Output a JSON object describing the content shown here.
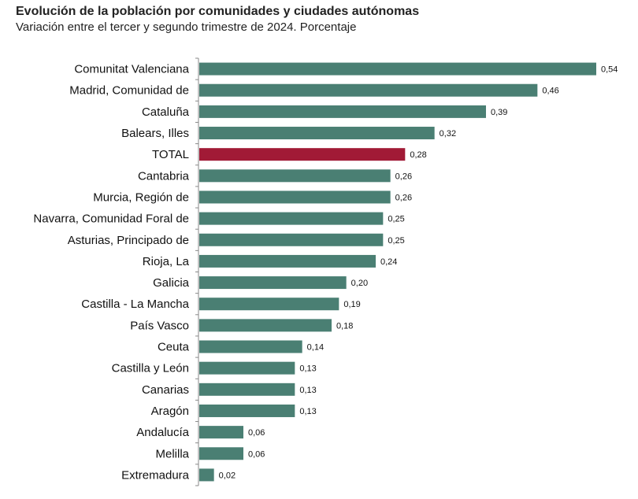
{
  "colors": {
    "bar": "#4a7f73",
    "highlight": "#a11a36",
    "axis": "#888888"
  },
  "chart_data": {
    "type": "bar",
    "orientation": "horizontal",
    "title": "Evolución de la población por comunidades y ciudades autónomas",
    "subtitle": "Variación entre el tercer y segundo trimestre de 2024. Porcentaje",
    "xlim": [
      0,
      0.54
    ],
    "highlight": "TOTAL",
    "categories": [
      "Comunitat Valenciana",
      "Madrid, Comunidad de",
      "Cataluña",
      "Balears, Illes",
      "TOTAL",
      "Cantabria",
      "Murcia, Región de",
      "Navarra, Comunidad Foral de",
      "Asturias, Principado de",
      "Rioja, La",
      "Galicia",
      "Castilla - La Mancha",
      "País Vasco",
      "Ceuta",
      "Castilla y León",
      "Canarias",
      "Aragón",
      "Andalucía",
      "Melilla",
      "Extremadura"
    ],
    "values": [
      0.54,
      0.46,
      0.39,
      0.32,
      0.28,
      0.26,
      0.26,
      0.25,
      0.25,
      0.24,
      0.2,
      0.19,
      0.18,
      0.14,
      0.13,
      0.13,
      0.13,
      0.06,
      0.06,
      0.02
    ],
    "value_labels": [
      "0,54",
      "0,46",
      "0,39",
      "0,32",
      "0,28",
      "0,26",
      "0,26",
      "0,25",
      "0,25",
      "0,24",
      "0,20",
      "0,19",
      "0,18",
      "0,14",
      "0,13",
      "0,13",
      "0,13",
      "0,06",
      "0,06",
      "0,02"
    ]
  }
}
